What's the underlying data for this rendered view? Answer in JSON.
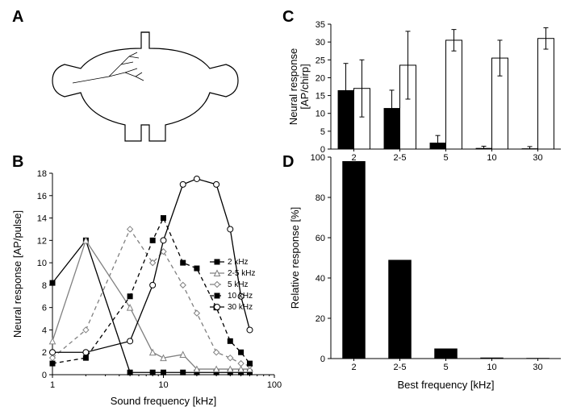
{
  "panelA": {
    "label": "A"
  },
  "panelB": {
    "label": "B",
    "type": "line",
    "xlabel": "Sound frequency [kHz]",
    "ylabel": "Neural response [AP/pulse]",
    "xlim": [
      1,
      100
    ],
    "ylim": [
      0,
      18
    ],
    "xscale": "log",
    "xticks": [
      1,
      10,
      100
    ],
    "yticks": [
      0,
      2,
      4,
      6,
      8,
      10,
      12,
      14,
      16,
      18
    ],
    "series": [
      {
        "name": "2 kHz",
        "marker": "filled-square",
        "color": "#000000",
        "dash": "solid",
        "x": [
          1,
          2,
          5,
          8,
          10,
          15,
          20,
          30,
          40,
          50,
          60
        ],
        "y": [
          8.2,
          12,
          0.2,
          0.2,
          0.2,
          0.2,
          0.2,
          0.2,
          0.2,
          0.2,
          0.2
        ]
      },
      {
        "name": "2-5 kHz",
        "marker": "open-triangle",
        "color": "#808080",
        "dash": "solid",
        "x": [
          1,
          2,
          5,
          8,
          10,
          15,
          20,
          30,
          40,
          50,
          60
        ],
        "y": [
          3,
          12,
          6,
          2,
          1.5,
          1.8,
          0.5,
          0.5,
          0.5,
          0.5,
          0.5
        ]
      },
      {
        "name": "5 kHz",
        "marker": "open-diamond",
        "color": "#808080",
        "dash": "dashed",
        "x": [
          1,
          2,
          5,
          8,
          10,
          15,
          20,
          30,
          40,
          50,
          60
        ],
        "y": [
          1.5,
          4,
          13,
          10,
          11,
          8,
          5.5,
          2,
          1.5,
          1,
          0.8
        ]
      },
      {
        "name": "10 kHz",
        "marker": "filled-square",
        "color": "#000000",
        "dash": "dashed",
        "x": [
          1,
          2,
          5,
          8,
          10,
          15,
          20,
          30,
          40,
          50,
          60
        ],
        "y": [
          1,
          1.5,
          7,
          12,
          14,
          10,
          9.5,
          6,
          3,
          2,
          1
        ]
      },
      {
        "name": "30 kHz",
        "marker": "open-circle",
        "color": "#000000",
        "dash": "solid",
        "x": [
          1,
          2,
          5,
          8,
          10,
          15,
          20,
          30,
          40,
          50,
          60
        ],
        "y": [
          2,
          2,
          3,
          8,
          12,
          17,
          17.5,
          17,
          13,
          7,
          4
        ]
      }
    ],
    "legend_position": "right",
    "background_color": "#ffffff",
    "axis_color": "#000000"
  },
  "panelC": {
    "label": "C",
    "type": "bar",
    "xlabel": "",
    "ylabel": "Neural response\n[AP/chirp]",
    "ylim": [
      0,
      35
    ],
    "yticks": [
      0,
      5,
      10,
      15,
      20,
      25,
      30,
      35
    ],
    "categories": [
      "2",
      "2-5",
      "5",
      "10",
      "30"
    ],
    "series": [
      {
        "name": "filled",
        "color": "#000000",
        "values": [
          16.5,
          11.5,
          1.8,
          0.3,
          0.2
        ],
        "errors": [
          7.5,
          5,
          2,
          0.5,
          0.5
        ]
      },
      {
        "name": "open",
        "color": "#ffffff",
        "border": "#000000",
        "values": [
          17,
          23.5,
          30.5,
          25.5,
          31
        ],
        "errors": [
          8,
          9.5,
          3,
          5,
          3
        ]
      }
    ],
    "bar_width": 0.35,
    "background_color": "#ffffff"
  },
  "panelD": {
    "label": "D",
    "type": "bar",
    "xlabel": "Best frequency [kHz]",
    "ylabel": "Relative response [%]",
    "ylim": [
      0,
      100
    ],
    "yticks": [
      0,
      20,
      40,
      60,
      80,
      100
    ],
    "categories": [
      "2",
      "2-5",
      "5",
      "10",
      "30"
    ],
    "values": [
      98,
      49,
      5,
      0.5,
      0.3
    ],
    "bar_color": "#000000",
    "bar_width": 0.5,
    "background_color": "#ffffff"
  },
  "colors": {
    "black": "#000000",
    "gray": "#808080",
    "white": "#ffffff"
  },
  "label_fontsize": 13,
  "tick_fontsize": 11,
  "panel_label_fontsize": 20
}
